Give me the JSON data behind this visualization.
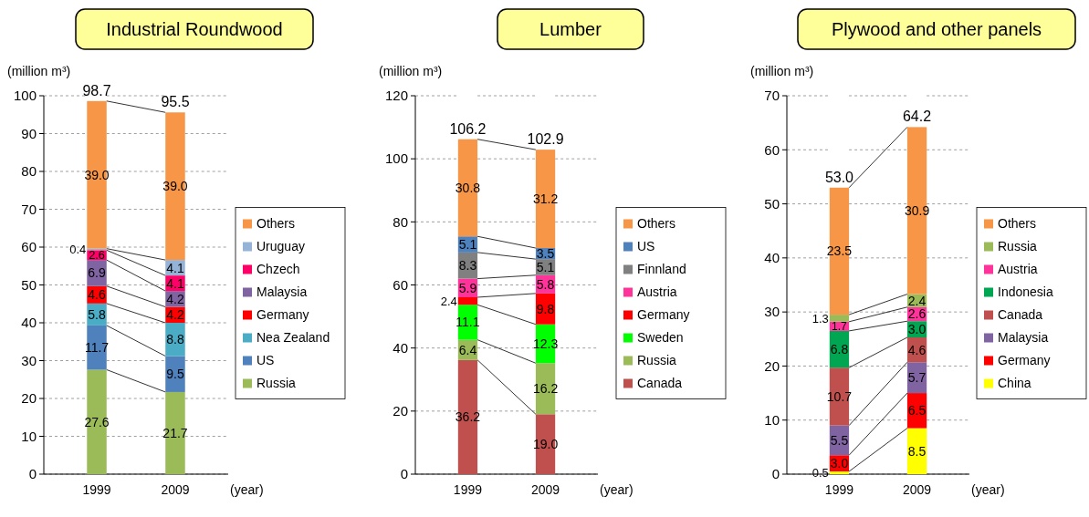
{
  "chart_data": [
    {
      "type": "bar",
      "title": "Industrial Roundwood",
      "ylabel": "(million m³)",
      "xlabel": "(year)",
      "categories": [
        "1999",
        "2009"
      ],
      "stacked": true,
      "totals": [
        "98.7",
        "95.5"
      ],
      "legend": "right",
      "grid": "y",
      "ylim": [
        0,
        100
      ],
      "yticks": [
        0,
        10,
        20,
        30,
        40,
        50,
        60,
        70,
        80,
        90,
        100
      ],
      "series": [
        {
          "name": "Russia",
          "color": "#9bbb59",
          "values": [
            27.6,
            21.7
          ],
          "value_labels": [
            "27.6",
            "21.7"
          ]
        },
        {
          "name": "US",
          "color": "#4f81bd",
          "values": [
            11.7,
            9.5
          ],
          "value_labels": [
            "11.7",
            "9.5"
          ]
        },
        {
          "name": "Nea Zealand",
          "color": "#4bacc6",
          "values": [
            5.8,
            8.8
          ],
          "value_labels": [
            "5.8",
            "8.8"
          ]
        },
        {
          "name": "Germany",
          "color": "#ff0000",
          "values": [
            4.6,
            4.2
          ],
          "value_labels": [
            "4.6",
            "4.2"
          ]
        },
        {
          "name": "Malaysia",
          "color": "#8064a2",
          "values": [
            6.9,
            4.2
          ],
          "value_labels": [
            "6.9",
            "4.2"
          ]
        },
        {
          "name": "Chzech",
          "color": "#ff0066",
          "values": [
            2.6,
            4.1
          ],
          "value_labels": [
            "2.6",
            "4.1"
          ]
        },
        {
          "name": "Uruguay",
          "color": "#95b3d7",
          "values": [
            0.4,
            4.1
          ],
          "value_labels": [
            "0.4",
            "4.1"
          ]
        },
        {
          "name": "Others",
          "color": "#f79646",
          "values": [
            39.0,
            39.0
          ],
          "value_labels": [
            "39.0",
            "39.0"
          ]
        }
      ]
    },
    {
      "type": "bar",
      "title": "Lumber",
      "ylabel": "(million m³)",
      "xlabel": "(year)",
      "categories": [
        "1999",
        "2009"
      ],
      "stacked": true,
      "totals": [
        "106.2",
        "102.9"
      ],
      "legend": "right",
      "grid": "y",
      "ylim": [
        0,
        120
      ],
      "yticks": [
        0,
        20,
        40,
        60,
        80,
        100,
        120
      ],
      "series": [
        {
          "name": "Canada",
          "color": "#c0504d",
          "values": [
            36.2,
            19.0
          ],
          "value_labels": [
            "36.2",
            "19.0"
          ]
        },
        {
          "name": "Russia",
          "color": "#9bbb59",
          "values": [
            6.4,
            16.2
          ],
          "value_labels": [
            "6.4",
            "16.2"
          ]
        },
        {
          "name": "Sweden",
          "color": "#00ff00",
          "values": [
            11.1,
            12.3
          ],
          "value_labels": [
            "11.1",
            "12.3"
          ]
        },
        {
          "name": "Germany",
          "color": "#ff0000",
          "values": [
            2.4,
            9.8
          ],
          "value_labels": [
            "2.4",
            "9.8"
          ]
        },
        {
          "name": "Austria",
          "color": "#ff3399",
          "values": [
            5.9,
            5.8
          ],
          "value_labels": [
            "5.9",
            "5.8"
          ]
        },
        {
          "name": "Finnland",
          "color": "#808080",
          "values": [
            8.3,
            5.1
          ],
          "value_labels": [
            "8.3",
            "5.1"
          ]
        },
        {
          "name": "US",
          "color": "#4f81bd",
          "values": [
            5.1,
            3.5
          ],
          "value_labels": [
            "5.1",
            "3.5"
          ]
        },
        {
          "name": "Others",
          "color": "#f79646",
          "values": [
            30.8,
            31.2
          ],
          "value_labels": [
            "30.8",
            "31.2"
          ]
        }
      ]
    },
    {
      "type": "bar",
      "title": "Plywood and other panels",
      "ylabel": "(million m³)",
      "xlabel": "(year)",
      "categories": [
        "1999",
        "2009"
      ],
      "stacked": true,
      "totals": [
        "53.0",
        "64.2"
      ],
      "legend": "right",
      "grid": "y",
      "ylim": [
        0,
        70
      ],
      "yticks": [
        0,
        10,
        20,
        30,
        40,
        50,
        60,
        70
      ],
      "series": [
        {
          "name": "China",
          "color": "#ffff00",
          "values": [
            0.5,
            8.5
          ],
          "value_labels": [
            "0.5",
            "8.5"
          ]
        },
        {
          "name": "Germany",
          "color": "#ff0000",
          "values": [
            3.0,
            6.5
          ],
          "value_labels": [
            "3.0",
            "6.5"
          ]
        },
        {
          "name": "Malaysia",
          "color": "#8064a2",
          "values": [
            5.5,
            5.7
          ],
          "value_labels": [
            "5.5",
            "5.7"
          ]
        },
        {
          "name": "Canada",
          "color": "#c0504d",
          "values": [
            10.7,
            4.6
          ],
          "value_labels": [
            "10.7",
            "4.6"
          ]
        },
        {
          "name": "Indonesia",
          "color": "#00a651",
          "values": [
            6.8,
            3.0
          ],
          "value_labels": [
            "6.8",
            "3.0"
          ]
        },
        {
          "name": "Austria",
          "color": "#ff3399",
          "values": [
            1.7,
            2.6
          ],
          "value_labels": [
            "1.7",
            "2.6"
          ]
        },
        {
          "name": "Russia",
          "color": "#9bbb59",
          "values": [
            1.3,
            2.4
          ],
          "value_labels": [
            "1.3",
            "2.4"
          ]
        },
        {
          "name": "Others",
          "color": "#f79646",
          "values": [
            23.5,
            30.9
          ],
          "value_labels": [
            "23.5",
            "30.9"
          ]
        }
      ]
    }
  ]
}
